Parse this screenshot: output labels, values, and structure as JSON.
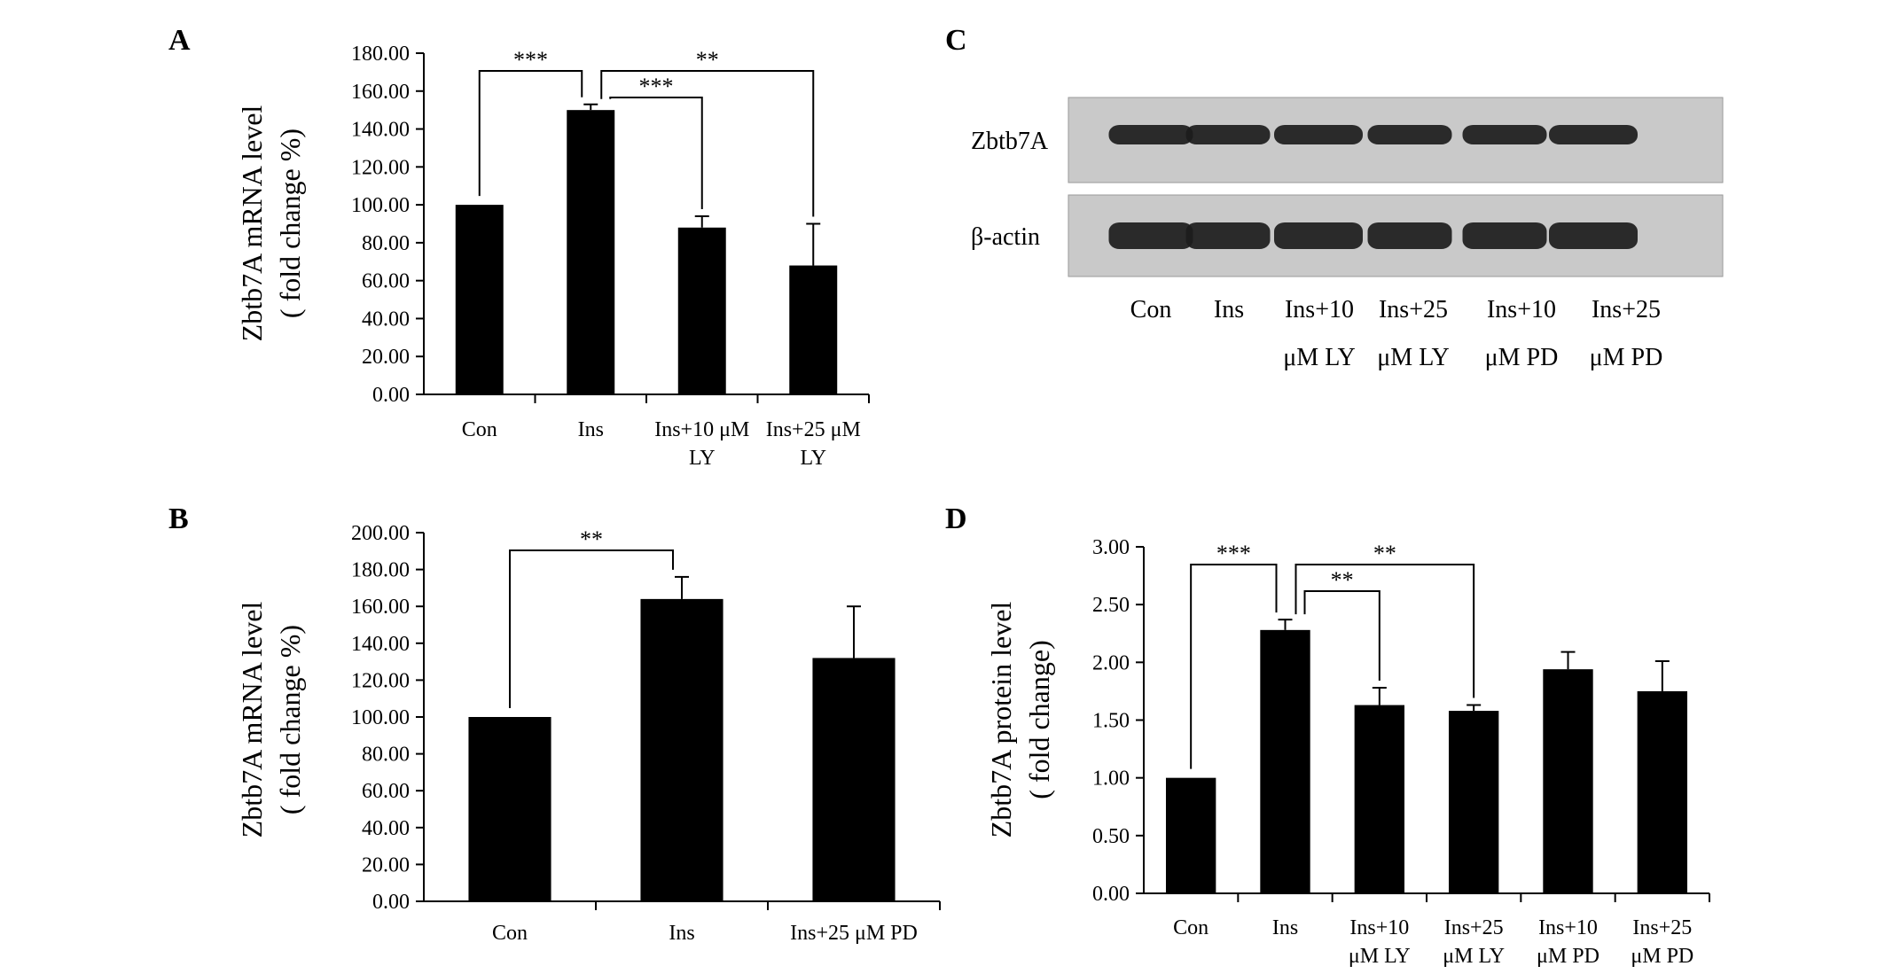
{
  "chart_data": [
    {
      "panel": "A",
      "type": "bar",
      "categories": [
        [
          "Con"
        ],
        [
          "Ins"
        ],
        [
          "Ins+10 μM",
          "LY"
        ],
        [
          "Ins+25 μM",
          "LY"
        ]
      ],
      "values": [
        100,
        150,
        88,
        68
      ],
      "errors": [
        0,
        3,
        6,
        22
      ],
      "ylabel": [
        "Zbtb7A  mRNA  level",
        "( fold  change %)"
      ],
      "ylim": [
        0,
        180
      ],
      "yticks": [
        "0.00",
        "20.00",
        "40.00",
        "60.00",
        "80.00",
        "100.00",
        "120.00",
        "140.00",
        "160.00",
        "180.00"
      ],
      "significance": [
        {
          "from": 0,
          "to": 1,
          "label": "***"
        },
        {
          "from": 1,
          "to": 3,
          "label": "**"
        },
        {
          "from": 1,
          "to": 2,
          "label": "***"
        }
      ]
    },
    {
      "panel": "B",
      "type": "bar",
      "categories": [
        [
          "Con"
        ],
        [
          "Ins"
        ],
        [
          "Ins+25 μM PD"
        ]
      ],
      "values": [
        100,
        164,
        132
      ],
      "errors": [
        0,
        12,
        28
      ],
      "ylabel": [
        "Zbtb7A  mRNA  level",
        "( fold  change %)"
      ],
      "ylim": [
        0,
        200
      ],
      "yticks": [
        "0.00",
        "20.00",
        "40.00",
        "60.00",
        "80.00",
        "100.00",
        "120.00",
        "140.00",
        "160.00",
        "180.00",
        "200.00"
      ],
      "significance": [
        {
          "from": 0,
          "to": 1,
          "label": "**"
        }
      ]
    },
    {
      "panel": "D",
      "type": "bar",
      "categories": [
        [
          "Con"
        ],
        [
          "Ins"
        ],
        [
          "Ins+10",
          "μM LY"
        ],
        [
          "Ins+25",
          "μM LY"
        ],
        [
          "Ins+10",
          "μM PD"
        ],
        [
          "Ins+25",
          "μM PD"
        ]
      ],
      "values": [
        1.0,
        2.28,
        1.63,
        1.58,
        1.94,
        1.75
      ],
      "errors": [
        0,
        0.09,
        0.15,
        0.05,
        0.15,
        0.26
      ],
      "ylabel": [
        "Zbtb7A  protein  level",
        "( fold  change)"
      ],
      "ylim": [
        0,
        3
      ],
      "yticks": [
        "0.00",
        "0.50",
        "1.00",
        "1.50",
        "2.00",
        "2.50",
        "3.00"
      ],
      "significance": [
        {
          "from": 0,
          "to": 1,
          "label": "***"
        },
        {
          "from": 1,
          "to": 3,
          "label": "**"
        },
        {
          "from": 1,
          "to": 2,
          "label": "**"
        }
      ]
    }
  ],
  "blot": {
    "panel": "C",
    "rows": [
      "Zbtb7A",
      "β-actin"
    ],
    "lanes": [
      [
        "Con"
      ],
      [
        "Ins"
      ],
      [
        "Ins+10",
        "μM LY"
      ],
      [
        "Ins+25",
        "μM LY"
      ],
      [
        "Ins+10",
        "μM PD"
      ],
      [
        "Ins+25",
        "μM PD"
      ]
    ]
  },
  "colors": {
    "bar": "#000000",
    "axis": "#000000",
    "blot_bg": "#c9c9c9",
    "band": "#1c1c1c"
  }
}
